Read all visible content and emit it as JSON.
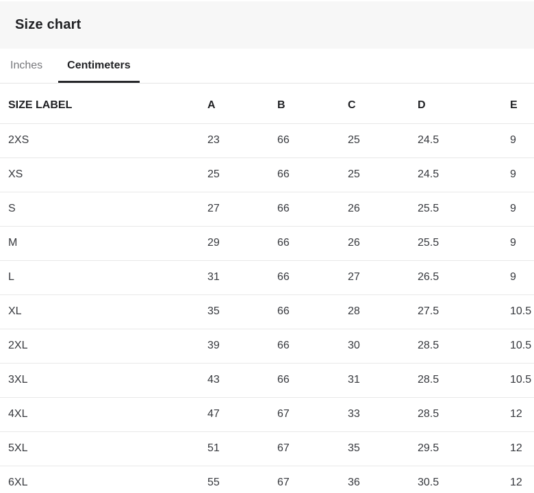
{
  "header": {
    "title": "Size chart"
  },
  "tabs": [
    {
      "label": "Inches",
      "active": false
    },
    {
      "label": "Centimeters",
      "active": true
    }
  ],
  "colors": {
    "header_bg": "#f7f7f7",
    "divider": "#e8e8e8",
    "tab_border": "#e4e4e5",
    "active_tab_underline": "#26272a",
    "text_primary": "#202124",
    "text_muted": "#76777b",
    "text_cell": "#35373c"
  },
  "chart_data": {
    "type": "table",
    "title": "Size chart",
    "unit": "Centimeters",
    "columns": [
      "SIZE LABEL",
      "A",
      "B",
      "C",
      "D",
      "E"
    ],
    "rows": [
      [
        "2XS",
        "23",
        "66",
        "25",
        "24.5",
        "9"
      ],
      [
        "XS",
        "25",
        "66",
        "25",
        "24.5",
        "9"
      ],
      [
        "S",
        "27",
        "66",
        "26",
        "25.5",
        "9"
      ],
      [
        "M",
        "29",
        "66",
        "26",
        "25.5",
        "9"
      ],
      [
        "L",
        "31",
        "66",
        "27",
        "26.5",
        "9"
      ],
      [
        "XL",
        "35",
        "66",
        "28",
        "27.5",
        "10.5"
      ],
      [
        "2XL",
        "39",
        "66",
        "30",
        "28.5",
        "10.5"
      ],
      [
        "3XL",
        "43",
        "66",
        "31",
        "28.5",
        "10.5"
      ],
      [
        "4XL",
        "47",
        "67",
        "33",
        "28.5",
        "12"
      ],
      [
        "5XL",
        "51",
        "67",
        "35",
        "29.5",
        "12"
      ],
      [
        "6XL",
        "55",
        "67",
        "36",
        "30.5",
        "12"
      ]
    ]
  }
}
